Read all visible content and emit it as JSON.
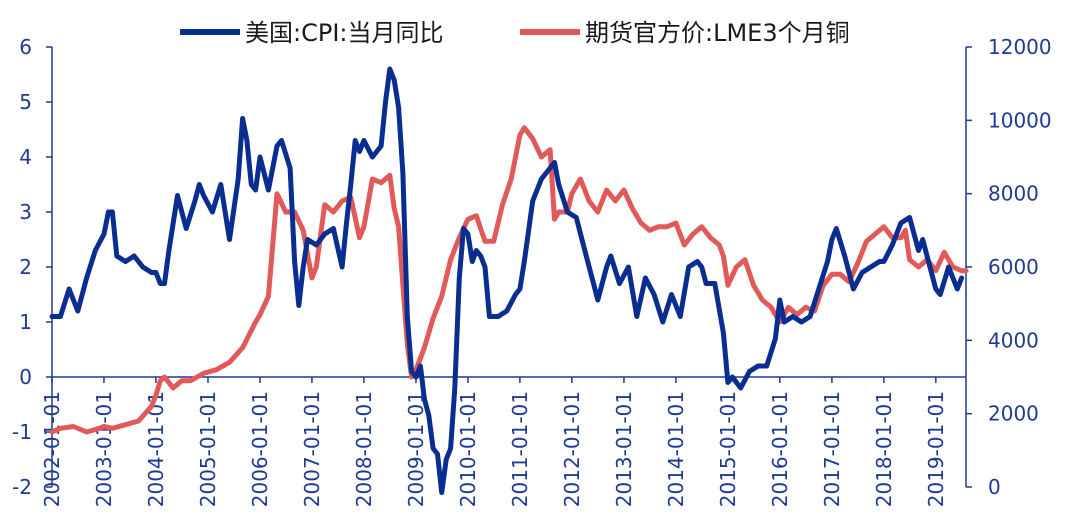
{
  "chart_data": {
    "type": "line",
    "x_axis": {
      "type": "date",
      "range": [
        "2002-01-01",
        "2019-08-01"
      ],
      "tick_labels": [
        "2002-01-01",
        "2003-01-01",
        "2004-01-01",
        "2005-01-01",
        "2006-01-01",
        "2007-01-01",
        "2008-01-01",
        "2009-01-01",
        "2010-01-01",
        "2011-01-01",
        "2012-01-01",
        "2013-01-01",
        "2014-01-01",
        "2015-01-01",
        "2016-01-01",
        "2017-01-01",
        "2018-01-01",
        "2019-01-01"
      ]
    },
    "y_left": {
      "range": [
        -2,
        6
      ],
      "tick_labels": [
        "-2",
        "-1",
        "0",
        "1",
        "2",
        "3",
        "4",
        "5",
        "6"
      ],
      "color": "#1f3a93"
    },
    "y_right": {
      "range": [
        0,
        12000
      ],
      "tick_labels": [
        "0",
        "2000",
        "4000",
        "6000",
        "8000",
        "10000",
        "12000"
      ],
      "color": "#1f3a93"
    },
    "legend_position": "top",
    "grid": false,
    "series": [
      {
        "name": "美国:CPI:当月同比",
        "axis": "left",
        "color": "#0a2e8f",
        "points": [
          [
            "2002-01-01",
            1.1
          ],
          [
            "2002-03-01",
            1.1
          ],
          [
            "2002-05-01",
            1.6
          ],
          [
            "2002-07-01",
            1.2
          ],
          [
            "2002-09-01",
            1.8
          ],
          [
            "2002-11-01",
            2.3
          ],
          [
            "2003-01-01",
            2.6
          ],
          [
            "2003-02-01",
            3.0
          ],
          [
            "2003-03-01",
            3.0
          ],
          [
            "2003-04-01",
            2.2
          ],
          [
            "2003-06-01",
            2.1
          ],
          [
            "2003-08-01",
            2.2
          ],
          [
            "2003-10-01",
            2.0
          ],
          [
            "2003-12-01",
            1.9
          ],
          [
            "2004-01-01",
            1.9
          ],
          [
            "2004-02-01",
            1.7
          ],
          [
            "2004-03-01",
            1.7
          ],
          [
            "2004-04-01",
            2.3
          ],
          [
            "2004-06-01",
            3.3
          ],
          [
            "2004-08-01",
            2.7
          ],
          [
            "2004-10-01",
            3.2
          ],
          [
            "2004-11-01",
            3.5
          ],
          [
            "2004-12-01",
            3.3
          ],
          [
            "2005-02-01",
            3.0
          ],
          [
            "2005-04-01",
            3.5
          ],
          [
            "2005-06-01",
            2.5
          ],
          [
            "2005-08-01",
            3.6
          ],
          [
            "2005-09-01",
            4.7
          ],
          [
            "2005-10-01",
            4.3
          ],
          [
            "2005-11-01",
            3.5
          ],
          [
            "2005-12-01",
            3.4
          ],
          [
            "2006-01-01",
            4.0
          ],
          [
            "2006-03-01",
            3.4
          ],
          [
            "2006-05-01",
            4.2
          ],
          [
            "2006-06-01",
            4.3
          ],
          [
            "2006-08-01",
            3.8
          ],
          [
            "2006-09-01",
            2.1
          ],
          [
            "2006-10-01",
            1.3
          ],
          [
            "2006-11-01",
            2.0
          ],
          [
            "2006-12-01",
            2.5
          ],
          [
            "2007-02-01",
            2.4
          ],
          [
            "2007-04-01",
            2.6
          ],
          [
            "2007-06-01",
            2.7
          ],
          [
            "2007-08-01",
            2.0
          ],
          [
            "2007-09-01",
            2.8
          ],
          [
            "2007-10-01",
            3.5
          ],
          [
            "2007-11-01",
            4.3
          ],
          [
            "2007-12-01",
            4.1
          ],
          [
            "2008-01-01",
            4.3
          ],
          [
            "2008-03-01",
            4.0
          ],
          [
            "2008-05-01",
            4.2
          ],
          [
            "2008-06-01",
            5.0
          ],
          [
            "2008-07-01",
            5.6
          ],
          [
            "2008-08-01",
            5.4
          ],
          [
            "2008-09-01",
            4.9
          ],
          [
            "2008-10-01",
            3.7
          ],
          [
            "2008-11-01",
            1.1
          ],
          [
            "2008-12-01",
            0.1
          ],
          [
            "2009-01-01",
            0.0
          ],
          [
            "2009-02-01",
            0.2
          ],
          [
            "2009-03-01",
            -0.4
          ],
          [
            "2009-04-01",
            -0.7
          ],
          [
            "2009-05-01",
            -1.3
          ],
          [
            "2009-06-01",
            -1.4
          ],
          [
            "2009-07-01",
            -2.1
          ],
          [
            "2009-08-01",
            -1.5
          ],
          [
            "2009-09-01",
            -1.3
          ],
          [
            "2009-10-01",
            -0.2
          ],
          [
            "2009-11-01",
            1.8
          ],
          [
            "2009-12-01",
            2.7
          ],
          [
            "2010-01-01",
            2.6
          ],
          [
            "2010-02-01",
            2.1
          ],
          [
            "2010-03-01",
            2.3
          ],
          [
            "2010-04-01",
            2.2
          ],
          [
            "2010-05-01",
            2.0
          ],
          [
            "2010-06-01",
            1.1
          ],
          [
            "2010-08-01",
            1.1
          ],
          [
            "2010-10-01",
            1.2
          ],
          [
            "2010-12-01",
            1.5
          ],
          [
            "2011-01-01",
            1.6
          ],
          [
            "2011-02-01",
            2.1
          ],
          [
            "2011-04-01",
            3.2
          ],
          [
            "2011-06-01",
            3.6
          ],
          [
            "2011-08-01",
            3.8
          ],
          [
            "2011-09-01",
            3.9
          ],
          [
            "2011-10-01",
            3.5
          ],
          [
            "2011-12-01",
            3.0
          ],
          [
            "2012-02-01",
            2.9
          ],
          [
            "2012-04-01",
            2.3
          ],
          [
            "2012-06-01",
            1.7
          ],
          [
            "2012-07-01",
            1.4
          ],
          [
            "2012-09-01",
            2.0
          ],
          [
            "2012-10-01",
            2.2
          ],
          [
            "2012-12-01",
            1.7
          ],
          [
            "2013-02-01",
            2.0
          ],
          [
            "2013-04-01",
            1.1
          ],
          [
            "2013-06-01",
            1.8
          ],
          [
            "2013-08-01",
            1.5
          ],
          [
            "2013-10-01",
            1.0
          ],
          [
            "2013-12-01",
            1.5
          ],
          [
            "2014-02-01",
            1.1
          ],
          [
            "2014-04-01",
            2.0
          ],
          [
            "2014-06-01",
            2.1
          ],
          [
            "2014-07-01",
            2.0
          ],
          [
            "2014-08-01",
            1.7
          ],
          [
            "2014-10-01",
            1.7
          ],
          [
            "2014-12-01",
            0.8
          ],
          [
            "2015-01-01",
            -0.1
          ],
          [
            "2015-02-01",
            0.0
          ],
          [
            "2015-04-01",
            -0.2
          ],
          [
            "2015-06-01",
            0.1
          ],
          [
            "2015-08-01",
            0.2
          ],
          [
            "2015-10-01",
            0.2
          ],
          [
            "2015-12-01",
            0.7
          ],
          [
            "2016-01-01",
            1.4
          ],
          [
            "2016-02-01",
            1.0
          ],
          [
            "2016-04-01",
            1.1
          ],
          [
            "2016-06-01",
            1.0
          ],
          [
            "2016-08-01",
            1.1
          ],
          [
            "2016-10-01",
            1.6
          ],
          [
            "2016-12-01",
            2.1
          ],
          [
            "2017-01-01",
            2.5
          ],
          [
            "2017-02-01",
            2.7
          ],
          [
            "2017-04-01",
            2.2
          ],
          [
            "2017-06-01",
            1.6
          ],
          [
            "2017-08-01",
            1.9
          ],
          [
            "2017-10-01",
            2.0
          ],
          [
            "2017-12-01",
            2.1
          ],
          [
            "2018-01-01",
            2.1
          ],
          [
            "2018-03-01",
            2.4
          ],
          [
            "2018-05-01",
            2.8
          ],
          [
            "2018-07-01",
            2.9
          ],
          [
            "2018-09-01",
            2.3
          ],
          [
            "2018-10-01",
            2.5
          ],
          [
            "2018-12-01",
            1.9
          ],
          [
            "2019-01-01",
            1.6
          ],
          [
            "2019-02-01",
            1.5
          ],
          [
            "2019-04-01",
            2.0
          ],
          [
            "2019-06-01",
            1.6
          ],
          [
            "2019-07-01",
            1.8
          ]
        ]
      },
      {
        "name": "期货官方价:LME3个月铜",
        "axis": "right",
        "color": "#e05a5a",
        "points": [
          [
            "2002-01-01",
            1500
          ],
          [
            "2002-03-01",
            1600
          ],
          [
            "2002-06-01",
            1650
          ],
          [
            "2002-09-01",
            1500
          ],
          [
            "2002-12-01",
            1600
          ],
          [
            "2003-01-01",
            1650
          ],
          [
            "2003-03-01",
            1600
          ],
          [
            "2003-06-01",
            1700
          ],
          [
            "2003-09-01",
            1800
          ],
          [
            "2003-12-01",
            2200
          ],
          [
            "2004-01-01",
            2500
          ],
          [
            "2004-02-01",
            2900
          ],
          [
            "2004-03-01",
            3000
          ],
          [
            "2004-05-01",
            2700
          ],
          [
            "2004-07-01",
            2900
          ],
          [
            "2004-09-01",
            2900
          ],
          [
            "2004-12-01",
            3100
          ],
          [
            "2005-03-01",
            3200
          ],
          [
            "2005-06-01",
            3400
          ],
          [
            "2005-09-01",
            3800
          ],
          [
            "2005-12-01",
            4500
          ],
          [
            "2006-01-01",
            4700
          ],
          [
            "2006-03-01",
            5200
          ],
          [
            "2006-05-01",
            8000
          ],
          [
            "2006-07-01",
            7500
          ],
          [
            "2006-09-01",
            7500
          ],
          [
            "2006-11-01",
            7000
          ],
          [
            "2007-01-01",
            5700
          ],
          [
            "2007-02-01",
            6000
          ],
          [
            "2007-04-01",
            7700
          ],
          [
            "2007-06-01",
            7500
          ],
          [
            "2007-08-01",
            7800
          ],
          [
            "2007-10-01",
            7900
          ],
          [
            "2007-12-01",
            6800
          ],
          [
            "2008-01-01",
            7100
          ],
          [
            "2008-03-01",
            8400
          ],
          [
            "2008-05-01",
            8300
          ],
          [
            "2008-07-01",
            8500
          ],
          [
            "2008-08-01",
            7600
          ],
          [
            "2008-09-01",
            7100
          ],
          [
            "2008-10-01",
            5500
          ],
          [
            "2008-11-01",
            3900
          ],
          [
            "2008-12-01",
            3000
          ],
          [
            "2009-01-01",
            3200
          ],
          [
            "2009-03-01",
            3800
          ],
          [
            "2009-05-01",
            4600
          ],
          [
            "2009-07-01",
            5200
          ],
          [
            "2009-09-01",
            6200
          ],
          [
            "2009-11-01",
            6800
          ],
          [
            "2010-01-01",
            7300
          ],
          [
            "2010-03-01",
            7400
          ],
          [
            "2010-05-01",
            6700
          ],
          [
            "2010-07-01",
            6700
          ],
          [
            "2010-09-01",
            7700
          ],
          [
            "2010-11-01",
            8400
          ],
          [
            "2011-01-01",
            9600
          ],
          [
            "2011-02-01",
            9800
          ],
          [
            "2011-04-01",
            9500
          ],
          [
            "2011-06-01",
            9000
          ],
          [
            "2011-08-01",
            9200
          ],
          [
            "2011-09-01",
            7300
          ],
          [
            "2011-10-01",
            7500
          ],
          [
            "2011-12-01",
            7500
          ],
          [
            "2012-01-01",
            8000
          ],
          [
            "2012-03-01",
            8400
          ],
          [
            "2012-05-01",
            7800
          ],
          [
            "2012-07-01",
            7500
          ],
          [
            "2012-09-01",
            8100
          ],
          [
            "2012-11-01",
            7800
          ],
          [
            "2013-01-01",
            8100
          ],
          [
            "2013-03-01",
            7600
          ],
          [
            "2013-05-01",
            7200
          ],
          [
            "2013-07-01",
            7000
          ],
          [
            "2013-09-01",
            7100
          ],
          [
            "2013-11-01",
            7100
          ],
          [
            "2014-01-01",
            7200
          ],
          [
            "2014-03-01",
            6600
          ],
          [
            "2014-05-01",
            6900
          ],
          [
            "2014-07-01",
            7100
          ],
          [
            "2014-09-01",
            6800
          ],
          [
            "2014-11-01",
            6600
          ],
          [
            "2014-12-01",
            6300
          ],
          [
            "2015-01-01",
            5500
          ],
          [
            "2015-03-01",
            6000
          ],
          [
            "2015-05-01",
            6200
          ],
          [
            "2015-07-01",
            5500
          ],
          [
            "2015-09-01",
            5100
          ],
          [
            "2015-11-01",
            4900
          ],
          [
            "2016-01-01",
            4500
          ],
          [
            "2016-03-01",
            4900
          ],
          [
            "2016-05-01",
            4700
          ],
          [
            "2016-07-01",
            4900
          ],
          [
            "2016-09-01",
            4800
          ],
          [
            "2016-11-01",
            5500
          ],
          [
            "2017-01-01",
            5800
          ],
          [
            "2017-03-01",
            5800
          ],
          [
            "2017-05-01",
            5600
          ],
          [
            "2017-07-01",
            6100
          ],
          [
            "2017-09-01",
            6700
          ],
          [
            "2017-11-01",
            6900
          ],
          [
            "2018-01-01",
            7100
          ],
          [
            "2018-03-01",
            6800
          ],
          [
            "2018-05-01",
            6800
          ],
          [
            "2018-06-01",
            7000
          ],
          [
            "2018-07-01",
            6200
          ],
          [
            "2018-09-01",
            6000
          ],
          [
            "2018-11-01",
            6200
          ],
          [
            "2019-01-01",
            5900
          ],
          [
            "2019-03-01",
            6400
          ],
          [
            "2019-05-01",
            6000
          ],
          [
            "2019-07-01",
            5900
          ],
          [
            "2019-08-01",
            5900
          ]
        ]
      }
    ]
  }
}
